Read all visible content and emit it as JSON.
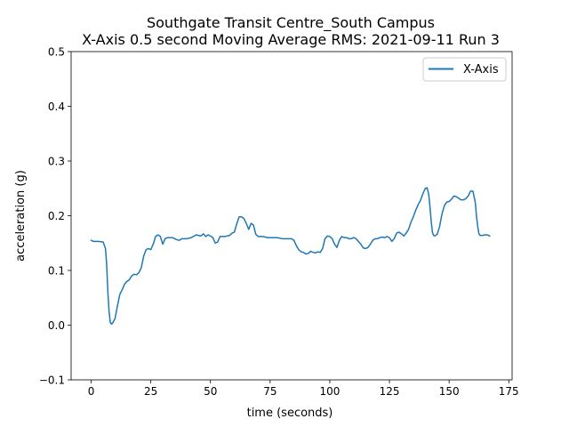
{
  "chart_data": {
    "type": "line",
    "title_lines": [
      "Southgate Transit Centre_South Campus",
      "X-Axis 0.5 second Moving Average RMS: 2021-09-11 Run 3"
    ],
    "xlabel": "time (seconds)",
    "ylabel": "acceleration (g)",
    "xlim": [
      -8.4,
      176.4
    ],
    "ylim": [
      -0.1,
      0.5
    ],
    "xticks": [
      0,
      25,
      50,
      75,
      100,
      125,
      150,
      175
    ],
    "xtick_labels": [
      "0",
      "25",
      "50",
      "75",
      "100",
      "125",
      "150",
      "175"
    ],
    "yticks": [
      -0.1,
      0.0,
      0.1,
      0.2,
      0.3,
      0.4,
      0.5
    ],
    "ytick_labels": [
      "−0.1",
      "0.0",
      "0.1",
      "0.2",
      "0.3",
      "0.4",
      "0.5"
    ],
    "grid": false,
    "legend_position": "top-right",
    "series": [
      {
        "name": "X-Axis",
        "color": "#1f77b4",
        "points": [
          [
            0,
            0.155
          ],
          [
            1,
            0.153
          ],
          [
            3,
            0.153
          ],
          [
            5,
            0.152
          ],
          [
            6,
            0.14
          ],
          [
            6.5,
            0.11
          ],
          [
            7,
            0.06
          ],
          [
            7.5,
            0.025
          ],
          [
            8,
            0.005
          ],
          [
            8.5,
            0.002
          ],
          [
            9,
            0.004
          ],
          [
            10,
            0.012
          ],
          [
            11,
            0.035
          ],
          [
            12,
            0.056
          ],
          [
            13,
            0.065
          ],
          [
            14,
            0.075
          ],
          [
            15,
            0.08
          ],
          [
            16,
            0.083
          ],
          [
            17,
            0.09
          ],
          [
            18,
            0.093
          ],
          [
            19,
            0.092
          ],
          [
            20,
            0.096
          ],
          [
            21,
            0.105
          ],
          [
            22,
            0.126
          ],
          [
            23,
            0.138
          ],
          [
            24,
            0.14
          ],
          [
            25,
            0.138
          ],
          [
            26,
            0.148
          ],
          [
            27,
            0.162
          ],
          [
            28,
            0.165
          ],
          [
            29,
            0.162
          ],
          [
            30,
            0.148
          ],
          [
            31,
            0.158
          ],
          [
            32,
            0.16
          ],
          [
            34,
            0.16
          ],
          [
            35,
            0.158
          ],
          [
            36,
            0.156
          ],
          [
            37,
            0.155
          ],
          [
            38,
            0.158
          ],
          [
            40,
            0.158
          ],
          [
            42,
            0.16
          ],
          [
            44,
            0.165
          ],
          [
            46,
            0.163
          ],
          [
            47,
            0.167
          ],
          [
            48,
            0.162
          ],
          [
            49,
            0.165
          ],
          [
            50,
            0.163
          ],
          [
            51,
            0.16
          ],
          [
            52,
            0.15
          ],
          [
            53,
            0.152
          ],
          [
            54,
            0.162
          ],
          [
            56,
            0.162
          ],
          [
            58,
            0.164
          ],
          [
            59,
            0.168
          ],
          [
            60,
            0.17
          ],
          [
            61,
            0.185
          ],
          [
            62,
            0.198
          ],
          [
            63,
            0.198
          ],
          [
            64,
            0.195
          ],
          [
            65,
            0.186
          ],
          [
            66,
            0.175
          ],
          [
            67,
            0.186
          ],
          [
            68,
            0.183
          ],
          [
            69,
            0.166
          ],
          [
            70,
            0.162
          ],
          [
            72,
            0.162
          ],
          [
            74,
            0.16
          ],
          [
            76,
            0.16
          ],
          [
            78,
            0.16
          ],
          [
            80,
            0.158
          ],
          [
            82,
            0.158
          ],
          [
            84,
            0.158
          ],
          [
            85,
            0.155
          ],
          [
            86,
            0.145
          ],
          [
            87,
            0.138
          ],
          [
            88,
            0.134
          ],
          [
            89,
            0.133
          ],
          [
            90,
            0.13
          ],
          [
            91,
            0.131
          ],
          [
            92,
            0.135
          ],
          [
            93,
            0.133
          ],
          [
            94,
            0.132
          ],
          [
            95,
            0.134
          ],
          [
            96,
            0.133
          ],
          [
            97,
            0.14
          ],
          [
            98,
            0.158
          ],
          [
            99,
            0.163
          ],
          [
            100,
            0.162
          ],
          [
            101,
            0.158
          ],
          [
            102,
            0.148
          ],
          [
            103,
            0.142
          ],
          [
            104,
            0.155
          ],
          [
            105,
            0.162
          ],
          [
            106,
            0.16
          ],
          [
            107,
            0.16
          ],
          [
            108,
            0.158
          ],
          [
            109,
            0.158
          ],
          [
            110,
            0.16
          ],
          [
            111,
            0.158
          ],
          [
            112,
            0.153
          ],
          [
            113,
            0.148
          ],
          [
            114,
            0.141
          ],
          [
            115,
            0.14
          ],
          [
            116,
            0.142
          ],
          [
            117,
            0.148
          ],
          [
            118,
            0.155
          ],
          [
            119,
            0.158
          ],
          [
            120,
            0.158
          ],
          [
            121,
            0.16
          ],
          [
            122,
            0.161
          ],
          [
            123,
            0.16
          ],
          [
            124,
            0.162
          ],
          [
            125,
            0.16
          ],
          [
            126,
            0.153
          ],
          [
            127,
            0.158
          ],
          [
            128,
            0.168
          ],
          [
            129,
            0.17
          ],
          [
            130,
            0.167
          ],
          [
            131,
            0.163
          ],
          [
            132,
            0.168
          ],
          [
            133,
            0.175
          ],
          [
            134,
            0.188
          ],
          [
            135,
            0.198
          ],
          [
            136,
            0.21
          ],
          [
            137,
            0.22
          ],
          [
            138,
            0.228
          ],
          [
            139,
            0.24
          ],
          [
            140,
            0.25
          ],
          [
            140.8,
            0.251
          ],
          [
            141.5,
            0.238
          ],
          [
            142,
            0.215
          ],
          [
            142.5,
            0.19
          ],
          [
            143,
            0.17
          ],
          [
            143.5,
            0.164
          ],
          [
            144,
            0.163
          ],
          [
            145,
            0.166
          ],
          [
            146,
            0.18
          ],
          [
            147,
            0.203
          ],
          [
            148,
            0.218
          ],
          [
            149,
            0.225
          ],
          [
            150,
            0.226
          ],
          [
            151,
            0.23
          ],
          [
            152,
            0.236
          ],
          [
            153,
            0.235
          ],
          [
            154,
            0.232
          ],
          [
            155,
            0.229
          ],
          [
            156,
            0.229
          ],
          [
            157,
            0.231
          ],
          [
            158,
            0.236
          ],
          [
            159,
            0.245
          ],
          [
            160,
            0.245
          ],
          [
            161,
            0.223
          ],
          [
            161.5,
            0.198
          ],
          [
            162,
            0.18
          ],
          [
            162.5,
            0.167
          ],
          [
            163,
            0.164
          ],
          [
            164,
            0.164
          ],
          [
            165,
            0.165
          ],
          [
            166,
            0.165
          ],
          [
            167,
            0.163
          ]
        ]
      }
    ]
  }
}
